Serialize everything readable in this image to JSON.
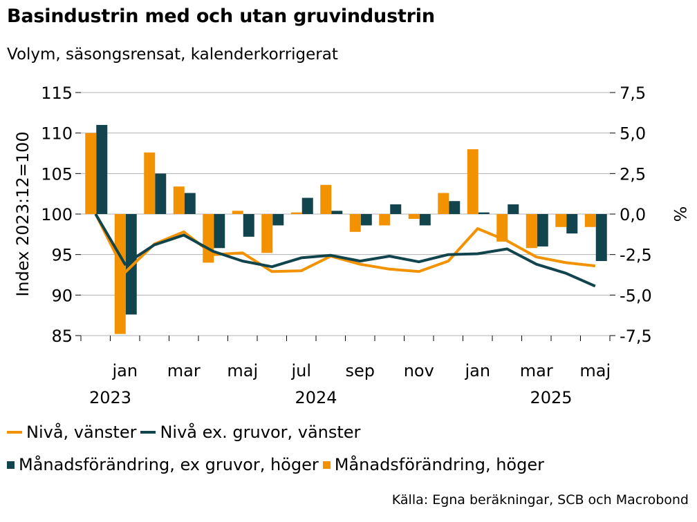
{
  "chart_data": {
    "type": "bar+line",
    "title": "Basindustrin med och utan gruvindustrin",
    "subtitle": "Volym, säsongsrensat, kalenderkorrigerat",
    "ylabel_left": "Index 2023:12=100",
    "ylabel_right": "%",
    "ylim_left": [
      85,
      115
    ],
    "ylim_right": [
      -7.5,
      7.5
    ],
    "yticks_left": [
      "115",
      "110",
      "105",
      "100",
      "95",
      "90",
      "85"
    ],
    "yticks_right": [
      "7,5",
      "5,0",
      "2,5",
      "0,0",
      "-2,5",
      "-5,0",
      "-7,5"
    ],
    "x_tick_labels": [
      {
        "label": "jan",
        "index": 1
      },
      {
        "label": "mar",
        "index": 3
      },
      {
        "label": "maj",
        "index": 5
      },
      {
        "label": "jul",
        "index": 7
      },
      {
        "label": "sep",
        "index": 9
      },
      {
        "label": "nov",
        "index": 11
      },
      {
        "label": "jan",
        "index": 13
      },
      {
        "label": "mar",
        "index": 15
      },
      {
        "label": "maj",
        "index": 17
      }
    ],
    "year_labels": [
      {
        "label": "2023",
        "index": 0.5
      },
      {
        "label": "2024",
        "index": 7.5
      },
      {
        "label": "2025",
        "index": 15.5
      }
    ],
    "months": [
      "2023-12",
      "2024-01",
      "2024-02",
      "2024-03",
      "2024-04",
      "2024-05",
      "2024-06",
      "2024-07",
      "2024-08",
      "2024-09",
      "2024-10",
      "2024-11",
      "2024-12",
      "2025-01",
      "2025-02",
      "2025-03",
      "2025-04",
      "2025-05"
    ],
    "series": [
      {
        "name": "Nivå, vänster",
        "kind": "line",
        "axis": "left",
        "color": "#F39200",
        "values": [
          100.0,
          92.8,
          96.3,
          97.8,
          95.0,
          95.2,
          92.9,
          93.0,
          94.8,
          93.8,
          93.2,
          92.9,
          94.2,
          98.2,
          96.7,
          94.7,
          94.0,
          93.6
        ]
      },
      {
        "name": "Nivå ex. gruvor, vänster",
        "kind": "line",
        "axis": "left",
        "color": "#11444C",
        "values": [
          100.0,
          93.8,
          96.2,
          97.4,
          95.4,
          94.2,
          93.5,
          94.6,
          94.9,
          94.2,
          94.8,
          94.1,
          95.0,
          95.1,
          95.7,
          93.8,
          92.7,
          91.1
        ]
      },
      {
        "name": "Månadsförändring, ex gruvor, höger",
        "kind": "bar",
        "axis": "right",
        "color": "#11444C",
        "values": [
          5.5,
          -6.2,
          2.5,
          1.3,
          -2.1,
          -1.4,
          -0.7,
          1.0,
          0.2,
          -0.7,
          0.6,
          -0.7,
          0.8,
          0.1,
          0.6,
          -2.0,
          -1.2,
          -2.9
        ]
      },
      {
        "name": "Månadsförändring, höger",
        "kind": "bar",
        "axis": "right",
        "color": "#F39200",
        "values": [
          5.0,
          -7.4,
          3.8,
          1.7,
          -3.0,
          0.2,
          -2.4,
          0.1,
          1.8,
          -1.1,
          -0.7,
          -0.3,
          1.3,
          4.0,
          -1.7,
          -2.1,
          -0.8,
          -0.8
        ]
      }
    ],
    "legend": [
      {
        "label": "Nivå, vänster",
        "marker": "line",
        "color": "#F39200"
      },
      {
        "label": "Nivå ex. gruvor, vänster",
        "marker": "line",
        "color": "#11444C"
      },
      {
        "label": "Månadsförändring, ex gruvor, höger",
        "marker": "square",
        "color": "#11444C"
      },
      {
        "label": "Månadsförändring, höger",
        "marker": "square",
        "color": "#F39200"
      }
    ],
    "source": "Källa: Egna beräkningar, SCB och Macrobond",
    "grid": true
  }
}
